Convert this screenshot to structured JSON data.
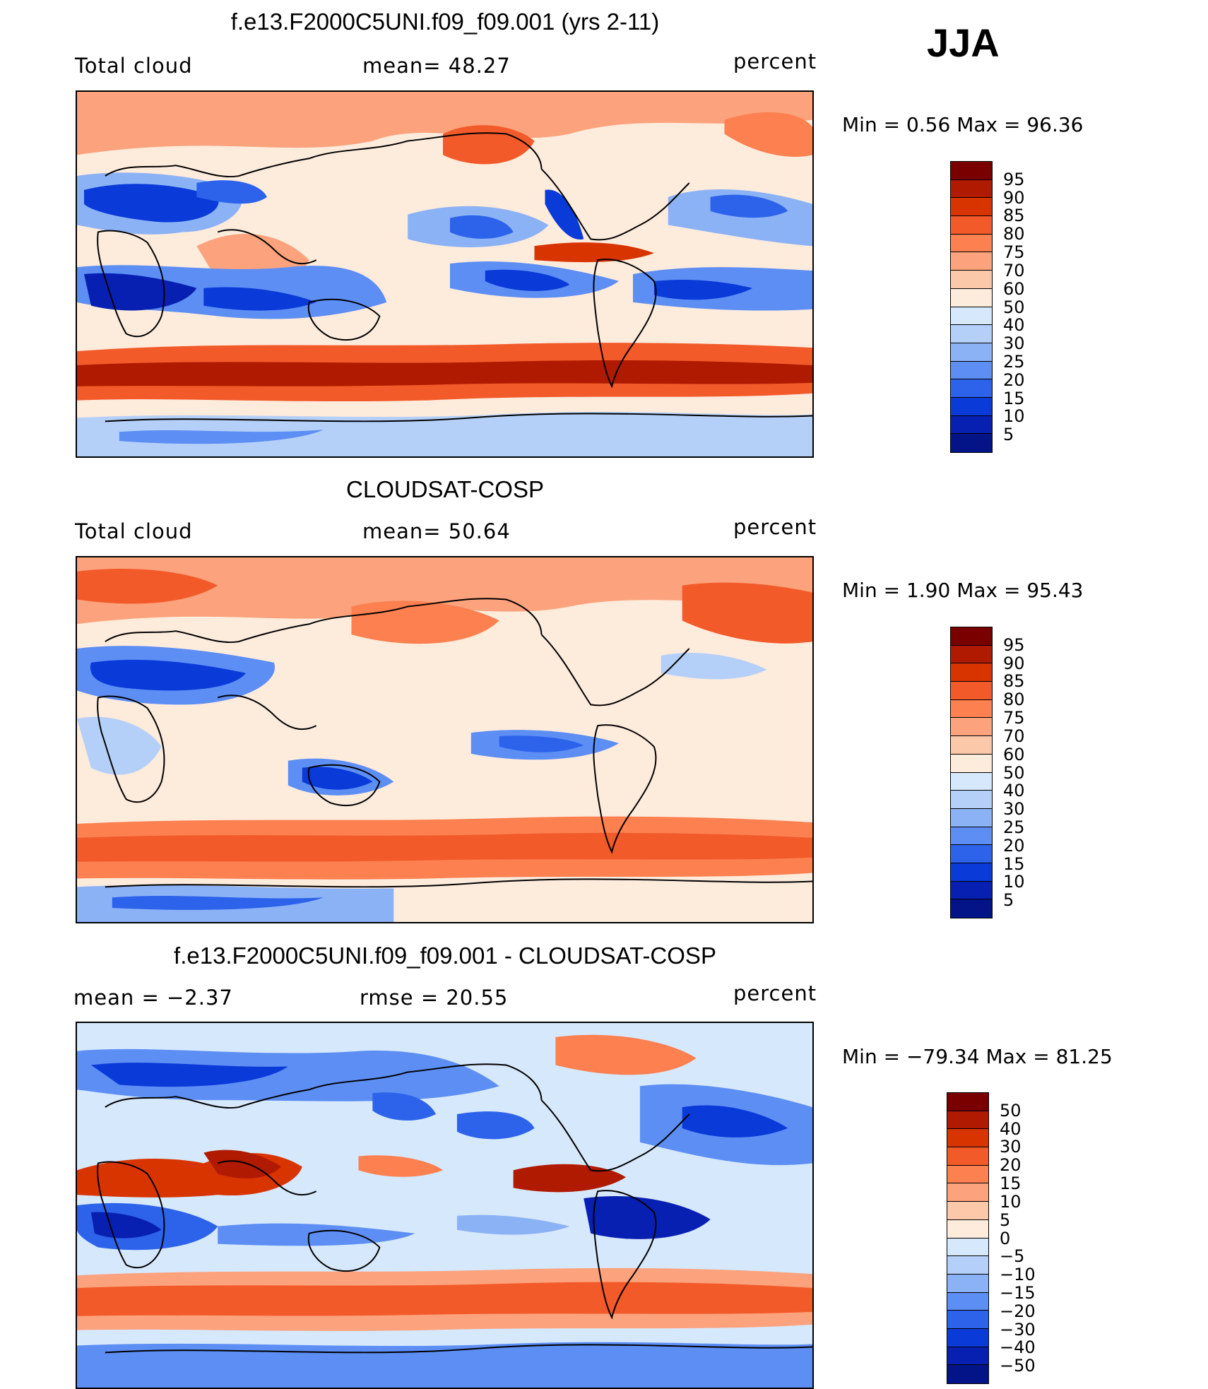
{
  "season": "JJA",
  "panels": [
    {
      "id": "model",
      "title": "f.e13.F2000C5UNI.f09_f09.001 (yrs 2-11)",
      "left_label": "Total cloud",
      "stat1": "mean=   48.27",
      "units": "percent",
      "minmax": "Min  =     0.56  Max  =    96.36",
      "colorbar": {
        "labels": [
          "95",
          "90",
          "85",
          "80",
          "75",
          "70",
          "60",
          "50",
          "40",
          "30",
          "25",
          "20",
          "15",
          "10",
          "5"
        ],
        "colors": [
          "#7a0000",
          "#b01a00",
          "#d83400",
          "#f25a2a",
          "#fc8050",
          "#fca27c",
          "#fcc8aa",
          "#fdebdc",
          "#d6e8fb",
          "#b4d0f8",
          "#8cb2f6",
          "#5d8ef4",
          "#2c63ea",
          "#0a3ad8",
          "#0820b2",
          "#021487"
        ]
      },
      "chart_data": {
        "type": "heatmap",
        "variable": "Total cloud",
        "units": "percent",
        "mean": 48.27,
        "min": 0.56,
        "max": 96.36,
        "contour_levels": [
          5,
          10,
          15,
          20,
          25,
          30,
          40,
          50,
          60,
          70,
          75,
          80,
          85,
          90,
          95
        ]
      }
    },
    {
      "id": "obs",
      "title": "CLOUDSAT-COSP",
      "left_label": "Total cloud",
      "stat1": "mean=   50.64",
      "units": "percent",
      "minmax": "Min  =     1.90  Max  =    95.43",
      "colorbar": {
        "labels": [
          "95",
          "90",
          "85",
          "80",
          "75",
          "70",
          "60",
          "50",
          "40",
          "30",
          "25",
          "20",
          "15",
          "10",
          "5"
        ],
        "colors": [
          "#7a0000",
          "#b01a00",
          "#d83400",
          "#f25a2a",
          "#fc8050",
          "#fca27c",
          "#fcc8aa",
          "#fdebdc",
          "#d6e8fb",
          "#b4d0f8",
          "#8cb2f6",
          "#5d8ef4",
          "#2c63ea",
          "#0a3ad8",
          "#0820b2",
          "#021487"
        ]
      },
      "chart_data": {
        "type": "heatmap",
        "variable": "Total cloud",
        "units": "percent",
        "mean": 50.64,
        "min": 1.9,
        "max": 95.43,
        "contour_levels": [
          5,
          10,
          15,
          20,
          25,
          30,
          40,
          50,
          60,
          70,
          75,
          80,
          85,
          90,
          95
        ]
      }
    },
    {
      "id": "diff",
      "title": "f.e13.F2000C5UNI.f09_f09.001 - CLOUDSAT-COSP",
      "left_label": "mean  =    −2.37",
      "stat1": "rmse  =    20.55",
      "units": "percent",
      "minmax": "Min  = −79.34  Max  =    81.25",
      "colorbar": {
        "labels": [
          "50",
          "40",
          "30",
          "20",
          "15",
          "10",
          "5",
          "0",
          "−5",
          "−10",
          "−15",
          "−20",
          "−30",
          "−40",
          "−50"
        ],
        "colors": [
          "#7a0000",
          "#b01a00",
          "#d83400",
          "#f25a2a",
          "#fc8050",
          "#fca27c",
          "#fcc8aa",
          "#fdebdc",
          "#d6e8fb",
          "#b4d0f8",
          "#8cb2f6",
          "#5d8ef4",
          "#2c63ea",
          "#0a3ad8",
          "#0820b2",
          "#021487"
        ]
      },
      "chart_data": {
        "type": "heatmap",
        "variable": "Total cloud difference",
        "units": "percent",
        "mean": -2.37,
        "rmse": 20.55,
        "min": -79.34,
        "max": 81.25,
        "contour_levels": [
          -50,
          -40,
          -30,
          -20,
          -15,
          -10,
          -5,
          0,
          5,
          10,
          15,
          20,
          30,
          40,
          50
        ]
      }
    }
  ]
}
